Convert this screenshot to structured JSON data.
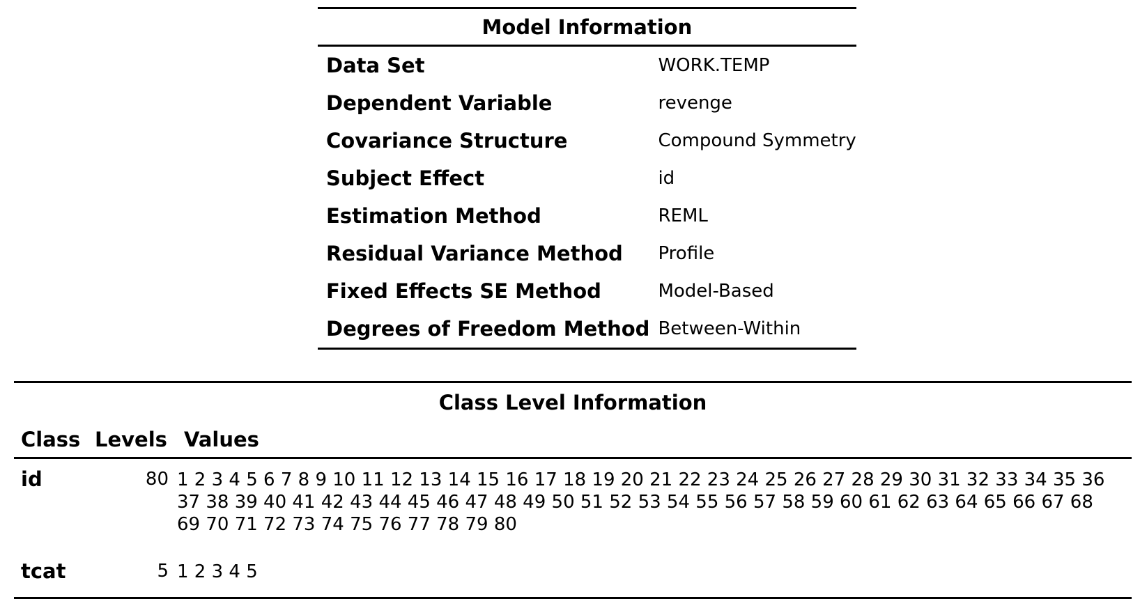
{
  "model_info": {
    "title": "Model Information",
    "rows": [
      {
        "label": "Data Set",
        "value": "WORK.TEMP"
      },
      {
        "label": "Dependent Variable",
        "value": "revenge"
      },
      {
        "label": "Covariance Structure",
        "value": "Compound Symmetry"
      },
      {
        "label": "Subject Effect",
        "value": "id"
      },
      {
        "label": "Estimation Method",
        "value": "REML"
      },
      {
        "label": "Residual Variance Method",
        "value": "Profile"
      },
      {
        "label": "Fixed Effects SE Method",
        "value": "Model-Based"
      },
      {
        "label": "Degrees of Freedom Method",
        "value": "Between-Within"
      }
    ]
  },
  "class_info": {
    "title": "Class Level Information",
    "headers": {
      "class": "Class",
      "levels": "Levels",
      "values": "Values"
    },
    "rows": [
      {
        "class": "id",
        "levels": "80",
        "values": "1 2 3 4 5 6 7 8 9 10 11 12 13 14 15 16 17 18 19 20 21 22 23 24 25 26 27 28 29 30 31 32 33 34 35 36 37 38 39 40 41 42 43 44 45 46 47 48 49 50 51 52 53 54 55 56 57 58 59 60 61 62 63 64 65 66 67 68 69 70 71 72 73 74 75 76 77 78 79 80"
      },
      {
        "class": "tcat",
        "levels": "5",
        "values": "1 2 3 4 5"
      }
    ]
  }
}
